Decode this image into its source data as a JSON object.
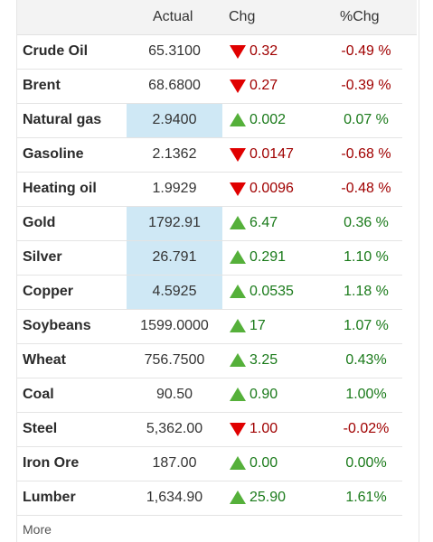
{
  "header": {
    "actual": "Actual",
    "chg": "Chg",
    "pct": "%Chg"
  },
  "colors": {
    "negative": "#a00000",
    "positive": "#1a7a1a",
    "down_arrow": "#e00000",
    "up_arrow": "#55b03a",
    "highlight": "#cfe8f5"
  },
  "rows": [
    {
      "name": "Crude Oil",
      "actual": "65.3100",
      "direction": "down",
      "chg": "0.32",
      "pct": "-0.49 %",
      "highlight": false
    },
    {
      "name": "Brent",
      "actual": "68.6800",
      "direction": "down",
      "chg": "0.27",
      "pct": "-0.39 %",
      "highlight": false
    },
    {
      "name": "Natural gas",
      "actual": "2.9400",
      "direction": "up",
      "chg": "0.002",
      "pct": "0.07 %",
      "highlight": true
    },
    {
      "name": "Gasoline",
      "actual": "2.1362",
      "direction": "down",
      "chg": "0.0147",
      "pct": "-0.68 %",
      "highlight": false
    },
    {
      "name": "Heating oil",
      "actual": "1.9929",
      "direction": "down",
      "chg": "0.0096",
      "pct": "-0.48 %",
      "highlight": false
    },
    {
      "name": "Gold",
      "actual": "1792.91",
      "direction": "up",
      "chg": "6.47",
      "pct": "0.36 %",
      "highlight": true
    },
    {
      "name": "Silver",
      "actual": "26.791",
      "direction": "up",
      "chg": "0.291",
      "pct": "1.10 %",
      "highlight": true
    },
    {
      "name": "Copper",
      "actual": "4.5925",
      "direction": "up",
      "chg": "0.0535",
      "pct": "1.18 %",
      "highlight": true
    },
    {
      "name": "Soybeans",
      "actual": "1599.0000",
      "direction": "up",
      "chg": "17",
      "pct": "1.07 %",
      "highlight": false
    },
    {
      "name": "Wheat",
      "actual": "756.7500",
      "direction": "up",
      "chg": "3.25",
      "pct": "0.43%",
      "highlight": false
    },
    {
      "name": "Coal",
      "actual": "90.50",
      "direction": "up",
      "chg": "0.90",
      "pct": "1.00%",
      "highlight": false
    },
    {
      "name": "Steel",
      "actual": "5,362.00",
      "direction": "down",
      "chg": "1.00",
      "pct": "-0.02%",
      "highlight": false
    },
    {
      "name": "Iron Ore",
      "actual": "187.00",
      "direction": "up",
      "chg": "0.00",
      "pct": "0.00%",
      "highlight": false
    },
    {
      "name": "Lumber",
      "actual": "1,634.90",
      "direction": "up",
      "chg": "25.90",
      "pct": "1.61%",
      "highlight": false
    }
  ],
  "footer": {
    "more_label": "More"
  }
}
